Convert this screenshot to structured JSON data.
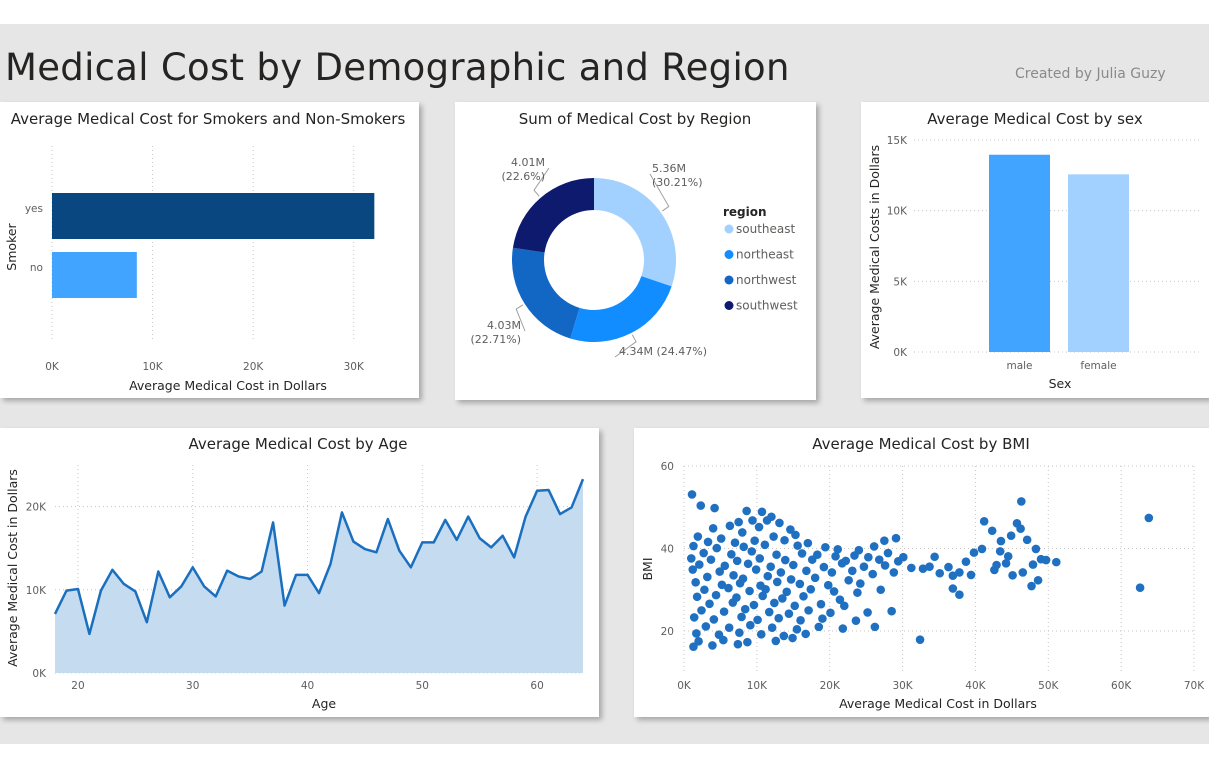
{
  "page": {
    "title": "Medical Cost by Demographic and Region",
    "credit": "Created by Julia Guzy"
  },
  "colors": {
    "dark_navy": "#0d1a6e",
    "dark_blue": "#094780",
    "mid_blue": "#118dff",
    "light_blue": "#a3d1ff",
    "bar_blue": "#41a4ff",
    "northwest_blue": "#1267c4",
    "area_line": "#1a6fbf",
    "area_fill": "#c5dbf0",
    "scatter": "#1f70c1"
  },
  "chart_data": [
    {
      "id": "smokers",
      "type": "bar",
      "orientation": "horizontal",
      "title": "Average Medical Cost for Smokers and Non-Smokers",
      "xlabel": "Average Medical Cost in Dollars",
      "ylabel": "Smoker",
      "categories": [
        "yes",
        "no"
      ],
      "values": [
        32050,
        8434
      ],
      "xlim": [
        0,
        35000
      ],
      "xticks": [
        {
          "v": 0,
          "label": "0K"
        },
        {
          "v": 10000,
          "label": "10K"
        },
        {
          "v": 20000,
          "label": "20K"
        },
        {
          "v": 30000,
          "label": "30K"
        }
      ],
      "grid": true
    },
    {
      "id": "region",
      "type": "pie",
      "variant": "donut",
      "title": "Sum of Medical Cost by Region",
      "legend_title": "region",
      "legend_position": "right",
      "slices": [
        {
          "name": "southeast",
          "value": 5.36,
          "value_label": "5.36M",
          "pct_label": "(30.21%)"
        },
        {
          "name": "northeast",
          "value": 4.34,
          "value_label": "4.34M (24.47%)",
          "pct_label": ""
        },
        {
          "name": "northwest",
          "value": 4.03,
          "value_label": "4.03M",
          "pct_label": "(22.71%)"
        },
        {
          "name": "southwest",
          "value": 4.01,
          "value_label": "4.01M",
          "pct_label": "(22.6%)"
        }
      ]
    },
    {
      "id": "sex",
      "type": "bar",
      "orientation": "vertical",
      "title": "Average Medical Cost by sex",
      "xlabel": "Sex",
      "ylabel": "Average Medical Costs in Dollars",
      "categories": [
        "male",
        "female"
      ],
      "values": [
        13957,
        12570
      ],
      "ylim": [
        0,
        15000
      ],
      "yticks": [
        {
          "v": 0,
          "label": "0K"
        },
        {
          "v": 5000,
          "label": "5K"
        },
        {
          "v": 10000,
          "label": "10K"
        },
        {
          "v": 15000,
          "label": "15K"
        }
      ],
      "grid": true
    },
    {
      "id": "age",
      "type": "area",
      "title": "Average Medical Cost by Age",
      "xlabel": "Age",
      "ylabel": "Average Medical Cost in Dollars",
      "xlim": [
        18,
        64
      ],
      "ylim": [
        0,
        25000
      ],
      "xticks": [
        {
          "v": 20,
          "label": "20"
        },
        {
          "v": 30,
          "label": "30"
        },
        {
          "v": 40,
          "label": "40"
        },
        {
          "v": 50,
          "label": "50"
        },
        {
          "v": 60,
          "label": "60"
        }
      ],
      "yticks": [
        {
          "v": 0,
          "label": "0K"
        },
        {
          "v": 10000,
          "label": "10K"
        },
        {
          "v": 20000,
          "label": "20K"
        }
      ],
      "x": [
        18,
        19,
        20,
        21,
        22,
        23,
        24,
        25,
        26,
        27,
        28,
        29,
        30,
        31,
        32,
        33,
        34,
        35,
        36,
        37,
        38,
        39,
        40,
        41,
        42,
        43,
        44,
        45,
        46,
        47,
        48,
        49,
        50,
        51,
        52,
        53,
        54,
        55,
        56,
        57,
        58,
        59,
        60,
        61,
        62,
        63,
        64
      ],
      "y": [
        7100,
        9900,
        10100,
        4700,
        9900,
        12400,
        10700,
        9800,
        6100,
        12200,
        9100,
        10400,
        12700,
        10400,
        9200,
        12300,
        11600,
        11300,
        12200,
        18100,
        8100,
        11800,
        11800,
        9600,
        13100,
        19300,
        15800,
        14900,
        14500,
        18500,
        14700,
        12700,
        15700,
        15700,
        18400,
        16000,
        18800,
        16200,
        15100,
        16500,
        13900,
        18800,
        21900,
        22000,
        19100,
        19900,
        23300
      ],
      "grid": true
    },
    {
      "id": "bmi",
      "type": "scatter",
      "title": "Average Medical Cost by BMI",
      "xlabel": "Average Medical Cost in Dollars",
      "ylabel": "BMI",
      "xlim": [
        0,
        70000
      ],
      "ylim": [
        10,
        60
      ],
      "xticks": [
        {
          "v": 0,
          "label": "0K"
        },
        {
          "v": 10000,
          "label": "10K"
        },
        {
          "v": 20000,
          "label": "20K"
        },
        {
          "v": 30000,
          "label": "30K"
        },
        {
          "v": 40000,
          "label": "40K"
        },
        {
          "v": 50000,
          "label": "50K"
        },
        {
          "v": 60000,
          "label": "60K"
        },
        {
          "v": 70000,
          "label": "70K"
        }
      ],
      "yticks": [
        {
          "v": 20,
          "label": "20"
        },
        {
          "v": 40,
          "label": "40"
        },
        {
          "v": 60,
          "label": "60"
        }
      ],
      "points": [
        [
          1100,
          53.1
        ],
        [
          2300,
          50.4
        ],
        [
          4200,
          49.8
        ],
        [
          8600,
          49.1
        ],
        [
          10700,
          48.9
        ],
        [
          12000,
          47.7
        ],
        [
          6300,
          45.5
        ],
        [
          9400,
          46.8
        ],
        [
          11400,
          46.8
        ],
        [
          7500,
          46.4
        ],
        [
          13100,
          46.2
        ],
        [
          4000,
          44.9
        ],
        [
          10300,
          45.2
        ],
        [
          14600,
          44.6
        ],
        [
          8000,
          43.9
        ],
        [
          1900,
          42.9
        ],
        [
          5100,
          42.4
        ],
        [
          12300,
          42.9
        ],
        [
          15300,
          43.3
        ],
        [
          3300,
          41.6
        ],
        [
          7000,
          41.4
        ],
        [
          9700,
          41.9
        ],
        [
          13800,
          42.0
        ],
        [
          17000,
          41.3
        ],
        [
          1300,
          40.6
        ],
        [
          4500,
          40.1
        ],
        [
          8200,
          40.4
        ],
        [
          11100,
          40.9
        ],
        [
          15600,
          40.7
        ],
        [
          19400,
          40.3
        ],
        [
          21100,
          39.8
        ],
        [
          24000,
          39.6
        ],
        [
          26100,
          40.5
        ],
        [
          27500,
          41.9
        ],
        [
          29100,
          42.5
        ],
        [
          2700,
          38.9
        ],
        [
          6500,
          38.6
        ],
        [
          9300,
          39.3
        ],
        [
          12700,
          38.5
        ],
        [
          16200,
          38.8
        ],
        [
          18300,
          38.5
        ],
        [
          20800,
          38.1
        ],
        [
          23400,
          38.3
        ],
        [
          25300,
          37.9
        ],
        [
          28000,
          38.9
        ],
        [
          30100,
          37.9
        ],
        [
          1000,
          37.6
        ],
        [
          3700,
          37.3
        ],
        [
          7300,
          37.0
        ],
        [
          10400,
          37.6
        ],
        [
          13900,
          37.2
        ],
        [
          17600,
          37.3
        ],
        [
          22200,
          37.0
        ],
        [
          26800,
          37.3
        ],
        [
          29400,
          36.9
        ],
        [
          2100,
          36.1
        ],
        [
          5600,
          35.8
        ],
        [
          8800,
          36.3
        ],
        [
          11900,
          35.6
        ],
        [
          15000,
          36.0
        ],
        [
          19200,
          35.5
        ],
        [
          21700,
          36.4
        ],
        [
          24700,
          35.6
        ],
        [
          27600,
          35.9
        ],
        [
          31200,
          35.3
        ],
        [
          1200,
          34.9
        ],
        [
          4900,
          34.4
        ],
        [
          9900,
          34.9
        ],
        [
          13300,
          34.2
        ],
        [
          16800,
          34.6
        ],
        [
          20300,
          34.2
        ],
        [
          23100,
          34.6
        ],
        [
          25900,
          33.8
        ],
        [
          28800,
          34.2
        ],
        [
          32800,
          35.1
        ],
        [
          35100,
          34.0
        ],
        [
          3200,
          33.1
        ],
        [
          6800,
          33.5
        ],
        [
          8100,
          32.7
        ],
        [
          11500,
          33.3
        ],
        [
          14700,
          32.5
        ],
        [
          18000,
          32.9
        ],
        [
          22600,
          32.3
        ],
        [
          33700,
          35.6
        ],
        [
          34400,
          38.0
        ],
        [
          36300,
          35.5
        ],
        [
          37800,
          34.2
        ],
        [
          36900,
          33.4
        ],
        [
          39400,
          33.6
        ],
        [
          38700,
          36.8
        ],
        [
          1600,
          31.8
        ],
        [
          5200,
          31.2
        ],
        [
          7700,
          31.6
        ],
        [
          10500,
          31.0
        ],
        [
          12800,
          31.9
        ],
        [
          15900,
          31.4
        ],
        [
          19800,
          31.1
        ],
        [
          24200,
          31.5
        ],
        [
          2800,
          30.0
        ],
        [
          6100,
          30.4
        ],
        [
          9000,
          29.7
        ],
        [
          11200,
          30.1
        ],
        [
          14100,
          29.5
        ],
        [
          17400,
          30.1
        ],
        [
          20600,
          29.6
        ],
        [
          23800,
          29.3
        ],
        [
          27000,
          30.0
        ],
        [
          1800,
          28.3
        ],
        [
          4400,
          28.7
        ],
        [
          7200,
          28.1
        ],
        [
          10800,
          28.5
        ],
        [
          13500,
          27.9
        ],
        [
          16400,
          28.4
        ],
        [
          21400,
          27.6
        ],
        [
          36900,
          30.3
        ],
        [
          37800,
          28.8
        ],
        [
          3500,
          26.6
        ],
        [
          6700,
          26.9
        ],
        [
          9600,
          26.3
        ],
        [
          12400,
          26.8
        ],
        [
          15200,
          26.1
        ],
        [
          18800,
          26.5
        ],
        [
          22000,
          26.1
        ],
        [
          2400,
          25.0
        ],
        [
          5500,
          24.7
        ],
        [
          8400,
          25.3
        ],
        [
          11700,
          24.6
        ],
        [
          14400,
          24.2
        ],
        [
          17100,
          25.0
        ],
        [
          20100,
          24.4
        ],
        [
          25200,
          24.5
        ],
        [
          28500,
          24.8
        ],
        [
          1400,
          23.3
        ],
        [
          4100,
          22.8
        ],
        [
          7900,
          23.4
        ],
        [
          10100,
          22.7
        ],
        [
          13000,
          23.1
        ],
        [
          16000,
          22.6
        ],
        [
          19000,
          23.0
        ],
        [
          23600,
          22.5
        ],
        [
          3000,
          21.1
        ],
        [
          6200,
          20.8
        ],
        [
          9100,
          21.4
        ],
        [
          12100,
          20.8
        ],
        [
          15500,
          20.4
        ],
        [
          18500,
          21.0
        ],
        [
          21800,
          20.6
        ],
        [
          26200,
          21.0
        ],
        [
          1700,
          19.4
        ],
        [
          4800,
          19.1
        ],
        [
          7600,
          19.6
        ],
        [
          10600,
          19.2
        ],
        [
          13700,
          18.8
        ],
        [
          16700,
          19.3
        ],
        [
          2000,
          17.5
        ],
        [
          5400,
          17.8
        ],
        [
          8700,
          17.3
        ],
        [
          12600,
          17.6
        ],
        [
          14900,
          18.3
        ],
        [
          32400,
          17.9
        ],
        [
          1300,
          16.2
        ],
        [
          3900,
          16.5
        ],
        [
          7400,
          16.8
        ],
        [
          41200,
          46.6
        ],
        [
          42300,
          44.3
        ],
        [
          43500,
          41.8
        ],
        [
          44900,
          43.1
        ],
        [
          45700,
          46.1
        ],
        [
          46200,
          44.8
        ],
        [
          47100,
          42.1
        ],
        [
          48300,
          39.9
        ],
        [
          49000,
          37.4
        ],
        [
          49700,
          37.2
        ],
        [
          51100,
          36.7
        ],
        [
          44200,
          36.4
        ],
        [
          47900,
          36.1
        ],
        [
          46500,
          34.2
        ],
        [
          45100,
          33.5
        ],
        [
          48600,
          32.3
        ],
        [
          47700,
          30.9
        ],
        [
          42600,
          34.8
        ],
        [
          43400,
          39.3
        ],
        [
          40900,
          39.9
        ],
        [
          39800,
          39.0
        ],
        [
          42900,
          36.0
        ],
        [
          46300,
          51.4
        ],
        [
          44500,
          38.1
        ],
        [
          63800,
          47.4
        ],
        [
          62600,
          30.5
        ]
      ],
      "grid": true
    }
  ]
}
